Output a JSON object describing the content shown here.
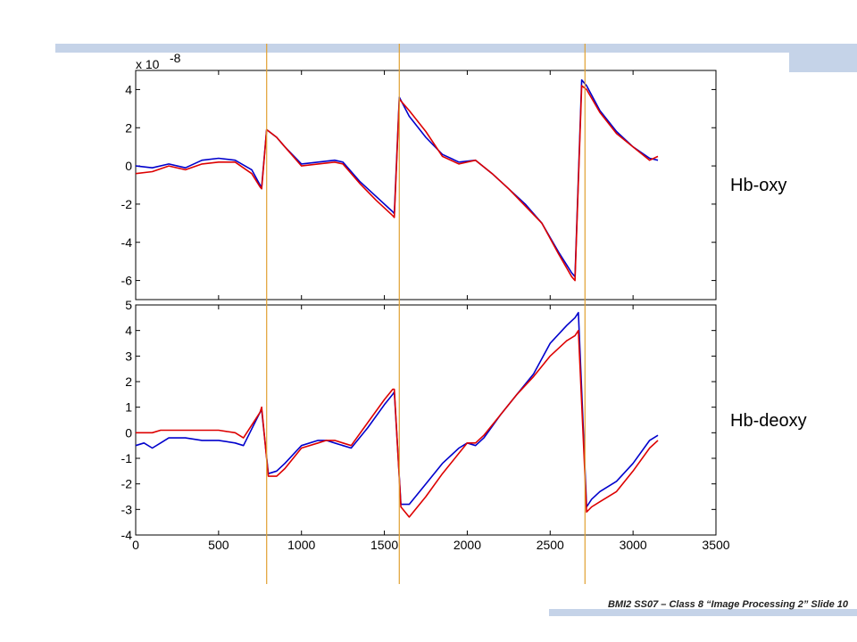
{
  "footer": "BMI2 SS07 – Class 8 “Image Processing 2” Slide 10",
  "labels": {
    "top": "Hb-oxy",
    "bottom": "Hb-deoxy"
  },
  "colors": {
    "series_blue": "#0000cc",
    "series_red": "#dd0000",
    "markers": "#e0a030",
    "accent_bar": "#c5d3e8"
  },
  "chart_data": [
    {
      "type": "line",
      "exponent_label": "x 10",
      "exponent_power": "-8",
      "xlim": [
        0,
        3500
      ],
      "ylim": [
        -7,
        5
      ],
      "yticks": [
        "4",
        "2",
        "0",
        "-2",
        "-4",
        "-6"
      ],
      "ytick_values": [
        4,
        2,
        0,
        -2,
        -4,
        -6
      ],
      "vlines": [
        790,
        1590,
        2710
      ],
      "series": [
        {
          "color": "blue",
          "x": [
            0,
            100,
            200,
            300,
            400,
            500,
            600,
            700,
            750,
            760,
            790,
            850,
            900,
            1000,
            1100,
            1200,
            1250,
            1350,
            1450,
            1550,
            1560,
            1590,
            1650,
            1750,
            1850,
            1950,
            2050,
            2150,
            2250,
            2350,
            2450,
            2550,
            2630,
            2650,
            2690,
            2720,
            2800,
            2900,
            3000,
            3100,
            3150
          ],
          "y": [
            0,
            -0.1,
            0.1,
            -0.1,
            0.3,
            0.4,
            0.3,
            -0.2,
            -1.0,
            -1.1,
            1.9,
            1.5,
            1.0,
            0.1,
            0.2,
            0.3,
            0.2,
            -0.8,
            -1.6,
            -2.4,
            -2.5,
            3.6,
            2.6,
            1.5,
            0.6,
            0.2,
            0.3,
            -0.4,
            -1.2,
            -2.0,
            -3.0,
            -4.5,
            -5.6,
            -5.8,
            4.5,
            4.2,
            2.9,
            1.8,
            1.0,
            0.4,
            0.3
          ]
        },
        {
          "color": "red",
          "x": [
            0,
            100,
            200,
            300,
            400,
            500,
            600,
            700,
            750,
            760,
            790,
            850,
            900,
            1000,
            1100,
            1200,
            1250,
            1350,
            1450,
            1550,
            1560,
            1590,
            1650,
            1750,
            1850,
            1950,
            2050,
            2150,
            2250,
            2350,
            2450,
            2550,
            2630,
            2650,
            2690,
            2720,
            2800,
            2900,
            3000,
            3100,
            3150
          ],
          "y": [
            -0.4,
            -0.3,
            0.0,
            -0.2,
            0.1,
            0.2,
            0.2,
            -0.4,
            -1.1,
            -1.2,
            1.9,
            1.5,
            1.0,
            0.0,
            0.1,
            0.2,
            0.1,
            -0.9,
            -1.8,
            -2.6,
            -2.7,
            3.5,
            2.9,
            1.8,
            0.5,
            0.1,
            0.3,
            -0.4,
            -1.2,
            -2.1,
            -3.0,
            -4.6,
            -5.8,
            -6.0,
            4.2,
            4.0,
            2.8,
            1.7,
            1.0,
            0.3,
            0.5
          ]
        }
      ]
    },
    {
      "type": "line",
      "xlim": [
        0,
        3500
      ],
      "ylim": [
        -4,
        5
      ],
      "yticks": [
        "5",
        "4",
        "3",
        "2",
        "1",
        "0",
        "-1",
        "-2",
        "-3",
        "-4"
      ],
      "ytick_values": [
        5,
        4,
        3,
        2,
        1,
        0,
        -1,
        -2,
        -3,
        -4
      ],
      "xticks": [
        "0",
        "500",
        "1000",
        "1500",
        "2000",
        "2500",
        "3000",
        "3500"
      ],
      "xtick_values": [
        0,
        500,
        1000,
        1500,
        2000,
        2500,
        3000,
        3500
      ],
      "vlines": [
        790,
        1590,
        2710
      ],
      "series": [
        {
          "color": "blue",
          "x": [
            0,
            50,
            100,
            150,
            200,
            300,
            400,
            500,
            600,
            650,
            750,
            760,
            800,
            850,
            900,
            1000,
            1100,
            1150,
            1200,
            1250,
            1300,
            1400,
            1500,
            1550,
            1560,
            1600,
            1650,
            1750,
            1850,
            1950,
            2000,
            2050,
            2100,
            2200,
            2300,
            2400,
            2500,
            2600,
            2650,
            2670,
            2720,
            2750,
            2800,
            2900,
            3000,
            3100,
            3150
          ],
          "y": [
            -0.5,
            -0.4,
            -0.6,
            -0.4,
            -0.2,
            -0.2,
            -0.3,
            -0.3,
            -0.4,
            -0.5,
            0.8,
            0.9,
            -1.6,
            -1.5,
            -1.2,
            -0.5,
            -0.3,
            -0.3,
            -0.4,
            -0.5,
            -0.6,
            0.2,
            1.1,
            1.5,
            1.6,
            -2.8,
            -2.8,
            -2.0,
            -1.2,
            -0.6,
            -0.4,
            -0.5,
            -0.2,
            0.7,
            1.5,
            2.3,
            3.5,
            4.2,
            4.5,
            4.7,
            -2.9,
            -2.6,
            -2.3,
            -1.9,
            -1.2,
            -0.3,
            -0.1
          ]
        },
        {
          "color": "red",
          "x": [
            0,
            50,
            100,
            150,
            200,
            300,
            400,
            500,
            600,
            650,
            750,
            760,
            800,
            850,
            900,
            1000,
            1100,
            1150,
            1200,
            1250,
            1300,
            1400,
            1500,
            1550,
            1560,
            1600,
            1650,
            1750,
            1850,
            1950,
            2000,
            2050,
            2100,
            2200,
            2300,
            2400,
            2500,
            2600,
            2650,
            2670,
            2720,
            2750,
            2800,
            2900,
            3000,
            3100,
            3150
          ],
          "y": [
            0.0,
            0.0,
            0.0,
            0.1,
            0.1,
            0.1,
            0.1,
            0.1,
            0.0,
            -0.2,
            0.8,
            1.0,
            -1.7,
            -1.7,
            -1.4,
            -0.6,
            -0.4,
            -0.3,
            -0.3,
            -0.4,
            -0.5,
            0.4,
            1.3,
            1.7,
            1.7,
            -2.9,
            -3.3,
            -2.5,
            -1.6,
            -0.8,
            -0.4,
            -0.4,
            -0.1,
            0.7,
            1.5,
            2.2,
            3.0,
            3.6,
            3.8,
            4.0,
            -3.1,
            -2.9,
            -2.7,
            -2.3,
            -1.5,
            -0.6,
            -0.3
          ]
        }
      ]
    }
  ]
}
